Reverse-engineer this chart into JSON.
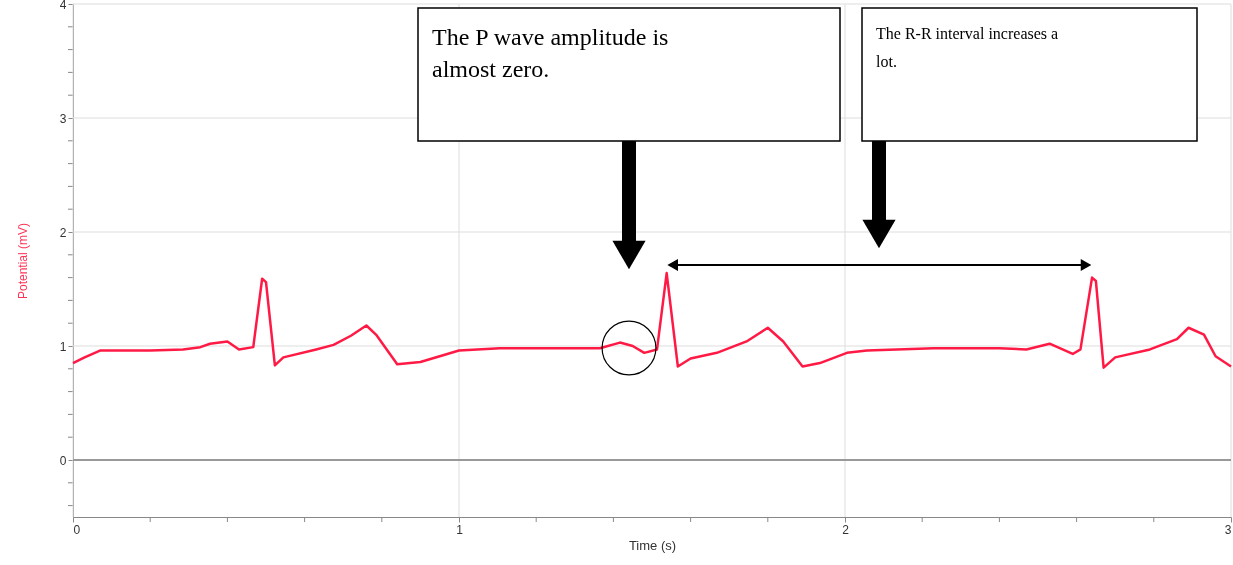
{
  "chart_data": {
    "type": "line",
    "xlabel": "Time (s)",
    "ylabel": "Potential (mV)",
    "xlim": [
      0,
      3
    ],
    "ylim": [
      -0.5,
      4
    ],
    "xticks": [
      0,
      {
        "value": 0.2,
        "label": null
      },
      {
        "value": 0.4,
        "label": null
      },
      {
        "value": 0.6,
        "label": null
      },
      {
        "value": 0.8,
        "label": null
      },
      1,
      {
        "value": 1.2,
        "label": null
      },
      {
        "value": 1.4,
        "label": null
      },
      {
        "value": 1.6,
        "label": null
      },
      {
        "value": 1.8,
        "label": null
      },
      2,
      {
        "value": 2.2,
        "label": null
      },
      {
        "value": 2.4,
        "label": null
      },
      {
        "value": 2.6,
        "label": null
      },
      {
        "value": 2.8,
        "label": null
      },
      3
    ],
    "yticks": [
      {
        "value": -0.4,
        "label": null
      },
      {
        "value": -0.2,
        "label": null
      },
      0,
      {
        "value": 0.2,
        "label": null
      },
      {
        "value": 0.4,
        "label": null
      },
      {
        "value": 0.6,
        "label": null
      },
      {
        "value": 0.8,
        "label": null
      },
      1,
      {
        "value": 1.2,
        "label": null
      },
      {
        "value": 1.4,
        "label": null
      },
      {
        "value": 1.6,
        "label": null
      },
      {
        "value": 1.8,
        "label": null
      },
      2,
      {
        "value": 2.2,
        "label": null
      },
      {
        "value": 2.4,
        "label": null
      },
      {
        "value": 2.6,
        "label": null
      },
      {
        "value": 2.8,
        "label": null
      },
      3,
      {
        "value": 3.2,
        "label": null
      },
      {
        "value": 3.4,
        "label": null
      },
      {
        "value": 3.6,
        "label": null
      },
      {
        "value": 3.8,
        "label": null
      },
      4
    ],
    "grid": true,
    "marker": "none",
    "line_style": "solid",
    "ref_lines": [
      {
        "axis": "y",
        "value": 0,
        "color": "#999999"
      }
    ],
    "series": [
      {
        "color": "#ff1a45",
        "x": [
          0,
          0.03,
          0.07,
          0.11,
          0.2,
          0.285,
          0.33,
          0.355,
          0.4,
          0.43,
          0.467,
          0.49,
          0.5,
          0.523,
          0.545,
          0.63,
          0.675,
          0.72,
          0.76,
          0.785,
          0.84,
          0.9,
          1.0,
          1.106,
          1.236,
          1.365,
          1.417,
          1.45,
          1.48,
          1.513,
          1.538,
          1.567,
          1.6,
          1.668,
          1.745,
          1.8,
          1.84,
          1.89,
          1.935,
          2.005,
          2.057,
          2.23,
          2.4,
          2.47,
          2.53,
          2.59,
          2.61,
          2.64,
          2.65,
          2.67,
          2.7,
          2.79,
          2.86,
          2.89,
          2.93,
          2.96,
          3.0
        ],
        "values": [
          0.85,
          0.9,
          0.96,
          0.96,
          0.96,
          0.97,
          0.99,
          1.02,
          1.04,
          0.97,
          0.99,
          1.59,
          1.56,
          0.83,
          0.9,
          0.97,
          1.01,
          1.09,
          1.18,
          1.1,
          0.84,
          0.86,
          0.96,
          0.98,
          0.98,
          0.98,
          1.03,
          1.0,
          0.94,
          0.97,
          1.64,
          0.82,
          0.89,
          0.94,
          1.04,
          1.16,
          1.04,
          0.82,
          0.85,
          0.94,
          0.96,
          0.98,
          0.98,
          0.97,
          1.02,
          0.93,
          0.97,
          1.6,
          1.57,
          0.81,
          0.9,
          0.97,
          1.06,
          1.16,
          1.1,
          0.91,
          0.82
        ]
      }
    ],
    "annotations": [
      "The P wave amplitude is almost zero.",
      "The R-R interval increases a lot."
    ]
  }
}
